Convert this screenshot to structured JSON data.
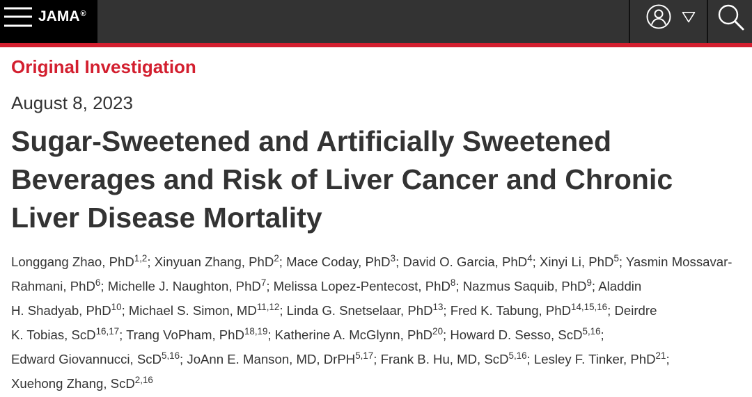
{
  "header": {
    "logo_text": "JAMA",
    "logo_mark": "®",
    "icons": {
      "menu": "hamburger-menu-icon",
      "account": "user-circle-icon",
      "account_dropdown": "triangle-down-icon",
      "search": "search-icon"
    }
  },
  "colors": {
    "accent": "#d31f2f",
    "header_bg": "#333333",
    "logo_bg": "#000000",
    "divider": "#111111",
    "text": "#333333",
    "icon": "#ffffff"
  },
  "article": {
    "type_label": "Original Investigation",
    "date": "August 8, 2023",
    "title": "Sugar-Sweetened and Artificially Sweetened Beverages and Risk of Liver Cancer and Chronic Liver Disease Mortality",
    "author_lines": [
      [
        {
          "author": "Longgang Zhao, PhD",
          "sup": "1,2",
          "sep": ";"
        },
        {
          "author": "Xinyuan Zhang, PhD",
          "sup": "2",
          "sep": ";"
        },
        {
          "author": "Mace Coday, PhD",
          "sup": "3",
          "sep": ";"
        },
        {
          "author": "David O. Garcia, PhD",
          "sup": "4",
          "sep": ";"
        },
        {
          "author": "Xinyi Li, PhD",
          "sup": "5",
          "sep": ";"
        },
        {
          "author": "Yasmin Mossavar-"
        }
      ],
      [
        {
          "author": "Rahmani, PhD",
          "sup": "6",
          "sep": ";"
        },
        {
          "author": "Michelle J. Naughton, PhD",
          "sup": "7",
          "sep": ";"
        },
        {
          "author": "Melissa Lopez-Pentecost, PhD",
          "sup": "8",
          "sep": ";"
        },
        {
          "author": "Nazmus Saquib, PhD",
          "sup": "9",
          "sep": ";"
        },
        {
          "author": "Aladdin"
        }
      ],
      [
        {
          "author": "H. Shadyab, PhD",
          "sup": "10",
          "sep": ";"
        },
        {
          "author": "Michael S. Simon, MD",
          "sup": "11,12",
          "sep": ";"
        },
        {
          "author": "Linda G. Snetselaar, PhD",
          "sup": "13",
          "sep": ";"
        },
        {
          "author": "Fred K. Tabung, PhD",
          "sup": "14,15,16",
          "sep": ";"
        },
        {
          "author": "Deirdre"
        }
      ],
      [
        {
          "author": "K. Tobias, ScD",
          "sup": "16,17",
          "sep": ";"
        },
        {
          "author": "Trang VoPham, PhD",
          "sup": "18,19",
          "sep": ";"
        },
        {
          "author": "Katherine A. McGlynn, PhD",
          "sup": "20",
          "sep": ";"
        },
        {
          "author": "Howard D. Sesso, ScD",
          "sup": "5,16",
          "sep": ";"
        }
      ],
      [
        {
          "author": "Edward Giovannucci, ScD",
          "sup": "5,16",
          "sep": ";"
        },
        {
          "author": "JoAnn E. Manson, MD, DrPH",
          "sup": "5,17",
          "sep": ";"
        },
        {
          "author": "Frank B. Hu, MD, ScD",
          "sup": "5,16",
          "sep": ";"
        },
        {
          "author": "Lesley F. Tinker, PhD",
          "sup": "21",
          "sep": ";"
        }
      ],
      [
        {
          "author": "Xuehong Zhang, ScD",
          "sup": "2,16"
        }
      ]
    ]
  }
}
